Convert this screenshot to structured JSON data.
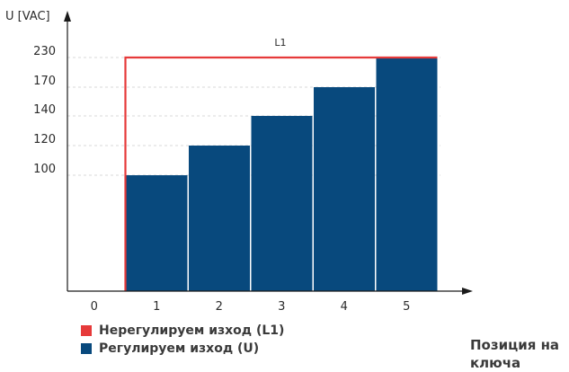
{
  "chart_data": {
    "type": "bar",
    "categories": [
      "0",
      "1",
      "2",
      "3",
      "4",
      "5"
    ],
    "series": [
      {
        "name": "Регулируем изход (U)",
        "values": [
          0,
          100,
          120,
          140,
          170,
          230
        ]
      },
      {
        "name": "Нерегулируем изход (L1)",
        "values": [
          0,
          230,
          230,
          230,
          230,
          230
        ]
      }
    ],
    "bar_annotation": "L1",
    "ylabel": "U [VAC]",
    "xlabel": "Позиция на ключа",
    "yticks": [
      "100",
      "120",
      "140",
      "170",
      "230"
    ],
    "grid": "horizontal dashed",
    "legend": "bottom-left",
    "colors": {
      "regulated": "#08497d",
      "unregulated": "#e63a3a"
    }
  }
}
